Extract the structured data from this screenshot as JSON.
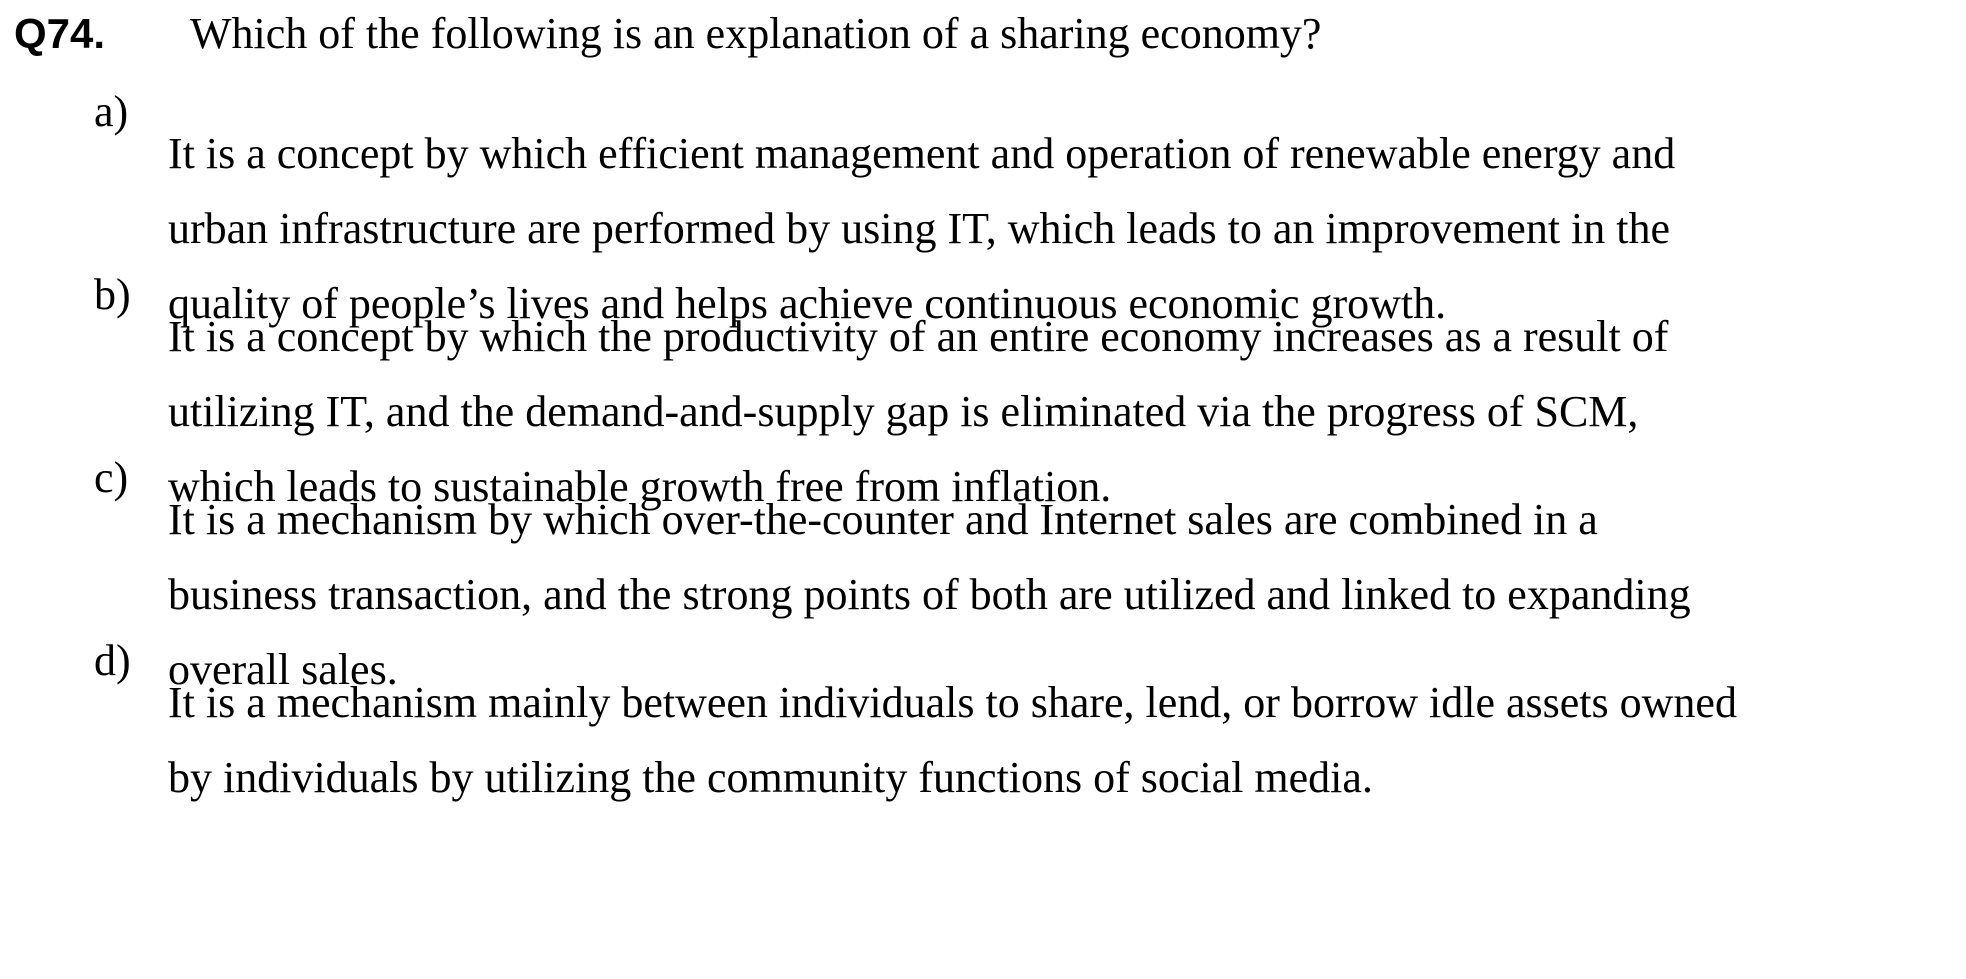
{
  "question": {
    "number": "Q74.",
    "text": "Which of the following is an explanation of a sharing economy?"
  },
  "options": [
    {
      "letter": "a)",
      "lines": [
        "It is a concept by which efficient management and operation of renewable energy and",
        "urban infrastructure are performed by using IT, which leads to an improvement in the",
        "quality of people’s lives and helps achieve continuous economic growth."
      ]
    },
    {
      "letter": "b)",
      "lines": [
        "It is a concept by which the productivity of an entire economy increases as a result of",
        "utilizing IT, and the demand-and-supply gap is eliminated via the progress of SCM,",
        "which leads to sustainable growth free from inflation."
      ]
    },
    {
      "letter": "c)",
      "lines": [
        "It is a mechanism by which over-the-counter and Internet sales are combined in a",
        "business transaction, and the strong points of both are utilized and linked to expanding",
        "overall sales."
      ]
    },
    {
      "letter": "d)",
      "lines": [
        "It is a mechanism mainly between individuals to share, lend, or borrow idle assets owned",
        "by individuals by utilizing the community functions of social media."
      ]
    }
  ]
}
